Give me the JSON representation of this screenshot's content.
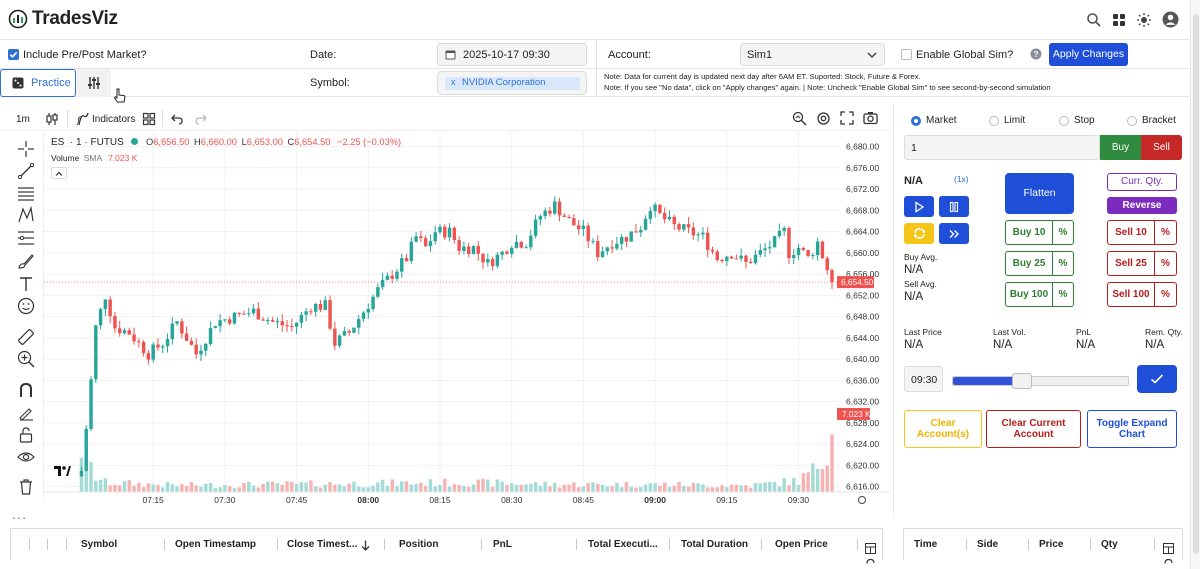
{
  "app": {
    "logo_text": "TradesViz"
  },
  "settings": {
    "include_prepost_label": "Include Pre/Post Market?",
    "date_label": "Date:",
    "date_value": "2025-10-17 09:30",
    "account_label": "Account:",
    "account_value": "Sim1",
    "global_sim_label": "Enable Global Sim?",
    "apply_label": "Apply Changes",
    "symbol_label": "Symbol:",
    "symbol_chip_x": "x",
    "symbol_value": "NVIDIA Corporation",
    "note1": "Note: Data for current day is updated next day after 6AM ET. Suported: Stock, Future & Forex.",
    "note2": "Note: If you see \"No data\", click on \"Apply changes\" again. | Note: Uncheck \"Enable Global Sim\" to see second-by-second simulation",
    "practice_tab": "Practice"
  },
  "toolbar": {
    "interval": "1m",
    "indicators": "Indicators"
  },
  "legend": {
    "symbol": "ES",
    "interval": "· 1 · FUTUS",
    "o_label": "O",
    "o_value": "6,656.50",
    "h_label": "H",
    "h_value": "6,660.00",
    "l_label": "L",
    "l_value": "6,653.00",
    "c_label": "C",
    "c_value": "6,654.50",
    "change": "−2.25 (−0.03%)",
    "volume_label": "Volume",
    "volume_sma": "SMA",
    "volume_value": "7.023 K"
  },
  "chart_data": {
    "type": "candlestick",
    "symbol": "ES",
    "interval": "1m",
    "y_ticks": [
      "6,680.00",
      "6,676.00",
      "6,672.00",
      "6,668.00",
      "6,664.00",
      "6,660.00",
      "6,656.00",
      "6,652.00",
      "6,648.00",
      "6,644.00",
      "6,640.00",
      "6,636.00",
      "6,632.00",
      "6,628.00",
      "6,624.00",
      "6,620.00",
      "6,616.00"
    ],
    "ylim": [
      6615,
      6682
    ],
    "x_ticks": [
      "07:15",
      "07:30",
      "07:45",
      "08:00",
      "08:15",
      "08:30",
      "08:45",
      "09:00",
      "09:15",
      "09:30"
    ],
    "x_ticks_bold": [
      "08:00",
      "09:00"
    ],
    "xlim_minutes": [
      413,
      577
    ],
    "last_price_tag": "6,654.50",
    "last_volume_tag": "7.023 K",
    "colors": {
      "up": "#26a69a",
      "down": "#ef5350",
      "vol_up": "#a3dcd6",
      "vol_down": "#f6b3b2"
    },
    "close_anchors": [
      [
        420,
        6619
      ],
      [
        421,
        6627
      ],
      [
        422,
        6636
      ],
      [
        423,
        6646
      ],
      [
        425,
        6652
      ],
      [
        427,
        6646
      ],
      [
        430,
        6645
      ],
      [
        434,
        6641
      ],
      [
        437,
        6643
      ],
      [
        440,
        6647
      ],
      [
        444,
        6641
      ],
      [
        448,
        6647
      ],
      [
        452,
        6648
      ],
      [
        456,
        6649
      ],
      [
        460,
        6647
      ],
      [
        464,
        6646
      ],
      [
        468,
        6650
      ],
      [
        471,
        6650
      ],
      [
        473,
        6643
      ],
      [
        476,
        6645
      ],
      [
        479,
        6649
      ],
      [
        482,
        6653
      ],
      [
        485,
        6656
      ],
      [
        488,
        6659
      ],
      [
        490,
        6663
      ],
      [
        492,
        6661
      ],
      [
        494,
        6664
      ],
      [
        497,
        6664
      ],
      [
        499,
        6661
      ],
      [
        502,
        6661
      ],
      [
        505,
        6658
      ],
      [
        508,
        6660
      ],
      [
        510,
        6662
      ],
      [
        513,
        6662
      ],
      [
        516,
        6667
      ],
      [
        519,
        6669
      ],
      [
        522,
        6666
      ],
      [
        525,
        6664
      ],
      [
        528,
        6660
      ],
      [
        531,
        6662
      ],
      [
        534,
        6663
      ],
      [
        537,
        6665
      ],
      [
        539,
        6669
      ],
      [
        541,
        6667
      ],
      [
        544,
        6665
      ],
      [
        547,
        6664
      ],
      [
        550,
        6663
      ],
      [
        553,
        6659
      ],
      [
        556,
        6660
      ],
      [
        559,
        6658
      ],
      [
        562,
        6660
      ],
      [
        565,
        6662
      ],
      [
        567,
        6664
      ],
      [
        568,
        6660
      ],
      [
        570,
        6661
      ],
      [
        572,
        6659
      ],
      [
        574,
        6662
      ],
      [
        576,
        6657
      ],
      [
        577,
        6654.5
      ]
    ],
    "volume_profile_k": [
      [
        413,
        0.3
      ],
      [
        417,
        0.8
      ],
      [
        419,
        2.5
      ],
      [
        420,
        4.8
      ],
      [
        421,
        3.4
      ],
      [
        423,
        1.6
      ],
      [
        425,
        1.0
      ],
      [
        440,
        0.7
      ],
      [
        480,
        0.9
      ],
      [
        500,
        1.0
      ],
      [
        520,
        0.8
      ],
      [
        540,
        0.8
      ],
      [
        560,
        0.7
      ],
      [
        570,
        1.2
      ],
      [
        573,
        2.2
      ],
      [
        575,
        3.5
      ],
      [
        577,
        7.023
      ]
    ],
    "volume_max_k": 7.2
  },
  "right_panel": {
    "order_types": [
      "Market",
      "Limit",
      "Stop",
      "Bracket"
    ],
    "selected_order_type": "Market",
    "qty_value": "1",
    "buy": "Buy",
    "sell": "Sell",
    "position_value": "N/A",
    "multiplier": "(1x)",
    "flatten": "Flatten",
    "curr_qty": "Curr. Qty.",
    "reverse": "Reverse",
    "buy_10": "Buy 10",
    "buy_25": "Buy 25",
    "buy_100": "Buy 100",
    "sell_10": "Sell 10",
    "sell_25": "Sell 25",
    "sell_100": "Sell 100",
    "pct": "%",
    "buy_avg_label": "Buy Avg.",
    "buy_avg_value": "N/A",
    "sell_avg_label": "Sell Avg.",
    "sell_avg_value": "N/A",
    "last_price_label": "Last Price",
    "last_price_value": "N/A",
    "last_vol_label": "Last Vol.",
    "last_vol_value": "N/A",
    "pnl_label": "PnL",
    "pnl_value": "N/A",
    "rem_qty_label": "Rem. Qty.",
    "rem_qty_value": "N/A",
    "time_value": "09:30",
    "progress": 0.39,
    "clear_accounts": "Clear Account(s)",
    "clear_current": "Clear Current Account",
    "toggle_expand": "Toggle Expand Chart"
  },
  "trades_table": {
    "headers": [
      "Symbol",
      "Open Timestamp",
      "Close Timest...",
      "Position",
      "PnL",
      "Total Executi...",
      "Total Duration",
      "Open Price"
    ]
  },
  "exec_table": {
    "headers": [
      "Time",
      "Side",
      "Price",
      "Qty"
    ]
  },
  "menu_dots": "• • •"
}
